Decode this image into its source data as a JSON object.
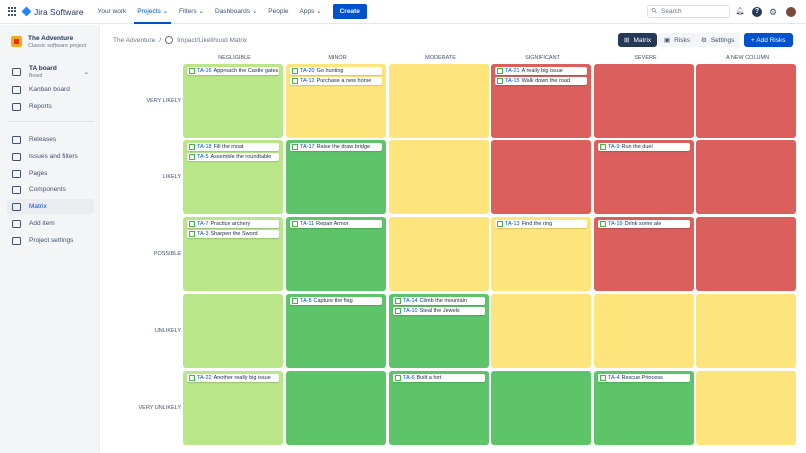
{
  "nav": {
    "product": "Jira Software",
    "items": [
      "Your work",
      "Projects ⌄",
      "Filters ⌄",
      "Dashboards ⌄",
      "People",
      "Apps ⌄"
    ],
    "active": 1,
    "create": "Create",
    "search_placeholder": "Search"
  },
  "sidebar": {
    "project_name": "The Adventure",
    "project_type": "Classic software project",
    "board": "TA board",
    "board_sub": "Board",
    "items": [
      {
        "label": "Kanban board",
        "icon": "kanban-icon"
      },
      {
        "label": "Reports",
        "icon": "reports-icon"
      },
      {
        "label": "Releases",
        "icon": "releases-icon"
      },
      {
        "label": "Issues and filters",
        "icon": "issues-icon"
      },
      {
        "label": "Pages",
        "icon": "pages-icon"
      },
      {
        "label": "Components",
        "icon": "components-icon"
      },
      {
        "label": "Matrix",
        "icon": "matrix-icon",
        "selected": true
      },
      {
        "label": "Add item",
        "icon": "add-item-icon"
      },
      {
        "label": "Project settings",
        "icon": "settings-icon"
      }
    ]
  },
  "breadcrumb": {
    "project": "The Adventure",
    "separator": "/",
    "page": "Impact/Likelihood Matrix"
  },
  "toolbar": {
    "matrix": "Matrix",
    "risks": "Risks",
    "settings": "Settings",
    "add": "+ Add Risks"
  },
  "colors": {
    "light_green": "#b8e689",
    "green": "#5ec46a",
    "yellow": "#fee57b",
    "red": "#da5f5d"
  },
  "matrix": {
    "columns": [
      "NEGLIGIBLE",
      "MINOR",
      "MODERATE",
      "SIGNIFICANT",
      "SEVERE",
      "A NEW COLUMN"
    ],
    "rows": [
      {
        "label": "VERY LIKELY",
        "colors": [
          "light_green",
          "yellow",
          "yellow",
          "red",
          "red",
          "red"
        ],
        "cells": [
          [
            [
              "TA-16",
              "Approach the Castle gates"
            ]
          ],
          [
            [
              "TA-20",
              "Go hunting"
            ],
            [
              "TA-12",
              "Purchase a new horse"
            ]
          ],
          [],
          [
            [
              "TA-21",
              "A really big issue"
            ],
            [
              "TA-15",
              "Walk down the road"
            ]
          ],
          [],
          []
        ]
      },
      {
        "label": "LIKELY",
        "colors": [
          "light_green",
          "green",
          "yellow",
          "red",
          "red",
          "red"
        ],
        "cells": [
          [
            [
              "TA-18",
              "Fill the moat"
            ],
            [
              "TA-5",
              "Assemble the roundtable"
            ]
          ],
          [
            [
              "TA-17",
              "Raise the draw bridge"
            ]
          ],
          [],
          [],
          [
            [
              "TA-9",
              "Run the duel"
            ]
          ],
          []
        ]
      },
      {
        "label": "POSSIBLE",
        "colors": [
          "light_green",
          "green",
          "yellow",
          "yellow",
          "red",
          "red"
        ],
        "cells": [
          [
            [
              "TA-7",
              "Practice archery"
            ],
            [
              "TA-3",
              "Sharpen the Sword"
            ]
          ],
          [
            [
              "TA-11",
              "Repair Armor"
            ]
          ],
          [],
          [
            [
              "TA-13",
              "Find the ring"
            ]
          ],
          [
            [
              "TA-19",
              "Drink some ale"
            ]
          ],
          []
        ]
      },
      {
        "label": "UNLIKELY",
        "colors": [
          "light_green",
          "green",
          "green",
          "yellow",
          "yellow",
          "yellow"
        ],
        "cells": [
          [],
          [
            [
              "TA-8",
              "Capture the flag"
            ]
          ],
          [
            [
              "TA-14",
              "Climb the mountain"
            ],
            [
              "TA-10",
              "Steal the Jewels"
            ]
          ],
          [],
          [],
          []
        ]
      },
      {
        "label": "VERY UNLIKELY",
        "colors": [
          "light_green",
          "green",
          "green",
          "green",
          "green",
          "yellow"
        ],
        "cells": [
          [
            [
              "TA-22",
              "Another really big issue"
            ]
          ],
          [],
          [
            [
              "TA-6",
              "Built a fort"
            ]
          ],
          [],
          [
            [
              "TA-4",
              "Rescue Princess"
            ]
          ],
          []
        ]
      }
    ]
  }
}
